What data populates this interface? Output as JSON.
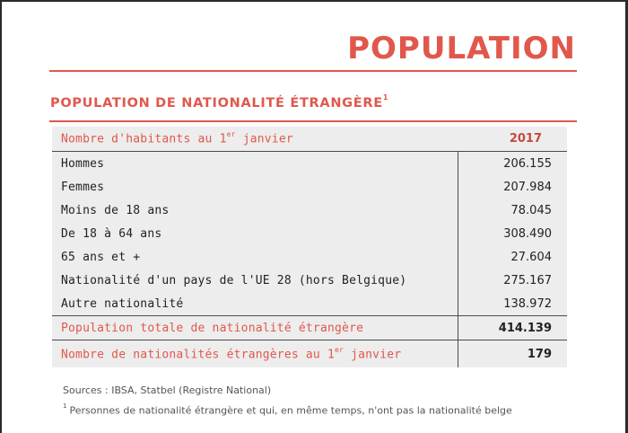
{
  "page": {
    "title": "POPULATION"
  },
  "section": {
    "title": "POPULATION DE NATIONALITÉ ÉTRANGÈRE",
    "title_sup": "1"
  },
  "table": {
    "header": {
      "label": "Nombre d'habitants au 1",
      "label_sup": "er",
      "label_tail": " janvier",
      "value": "2017"
    },
    "rows": [
      {
        "label": "Hommes",
        "value": "206.155"
      },
      {
        "label": "Femmes",
        "value": "207.984"
      },
      {
        "label": "Moins de 18 ans",
        "value": "78.045"
      },
      {
        "label": "De 18 à 64 ans",
        "value": "308.490"
      },
      {
        "label": "65 ans et +",
        "value": "27.604"
      },
      {
        "label": "Nationalité d'un pays de l'UE 28 (hors Belgique)",
        "value": "275.167"
      },
      {
        "label": "Autre nationalité",
        "value": "138.972"
      }
    ],
    "total": {
      "label": "Population totale de nationalité étrangère",
      "value": "414.139"
    },
    "count": {
      "label": "Nombre de nationalités étrangères au 1",
      "label_sup": "er",
      "label_tail": " janvier",
      "value": "179"
    }
  },
  "source": "Sources : IBSA, Statbel (Registre National)",
  "footnote": {
    "marker": "1",
    "text": "Personnes de nationalité étrangère et qui, en même temps, n'ont pas la nationalité belge"
  },
  "colors": {
    "accent": "#e0584c",
    "table_bg": "#ededed",
    "text": "#222222"
  }
}
